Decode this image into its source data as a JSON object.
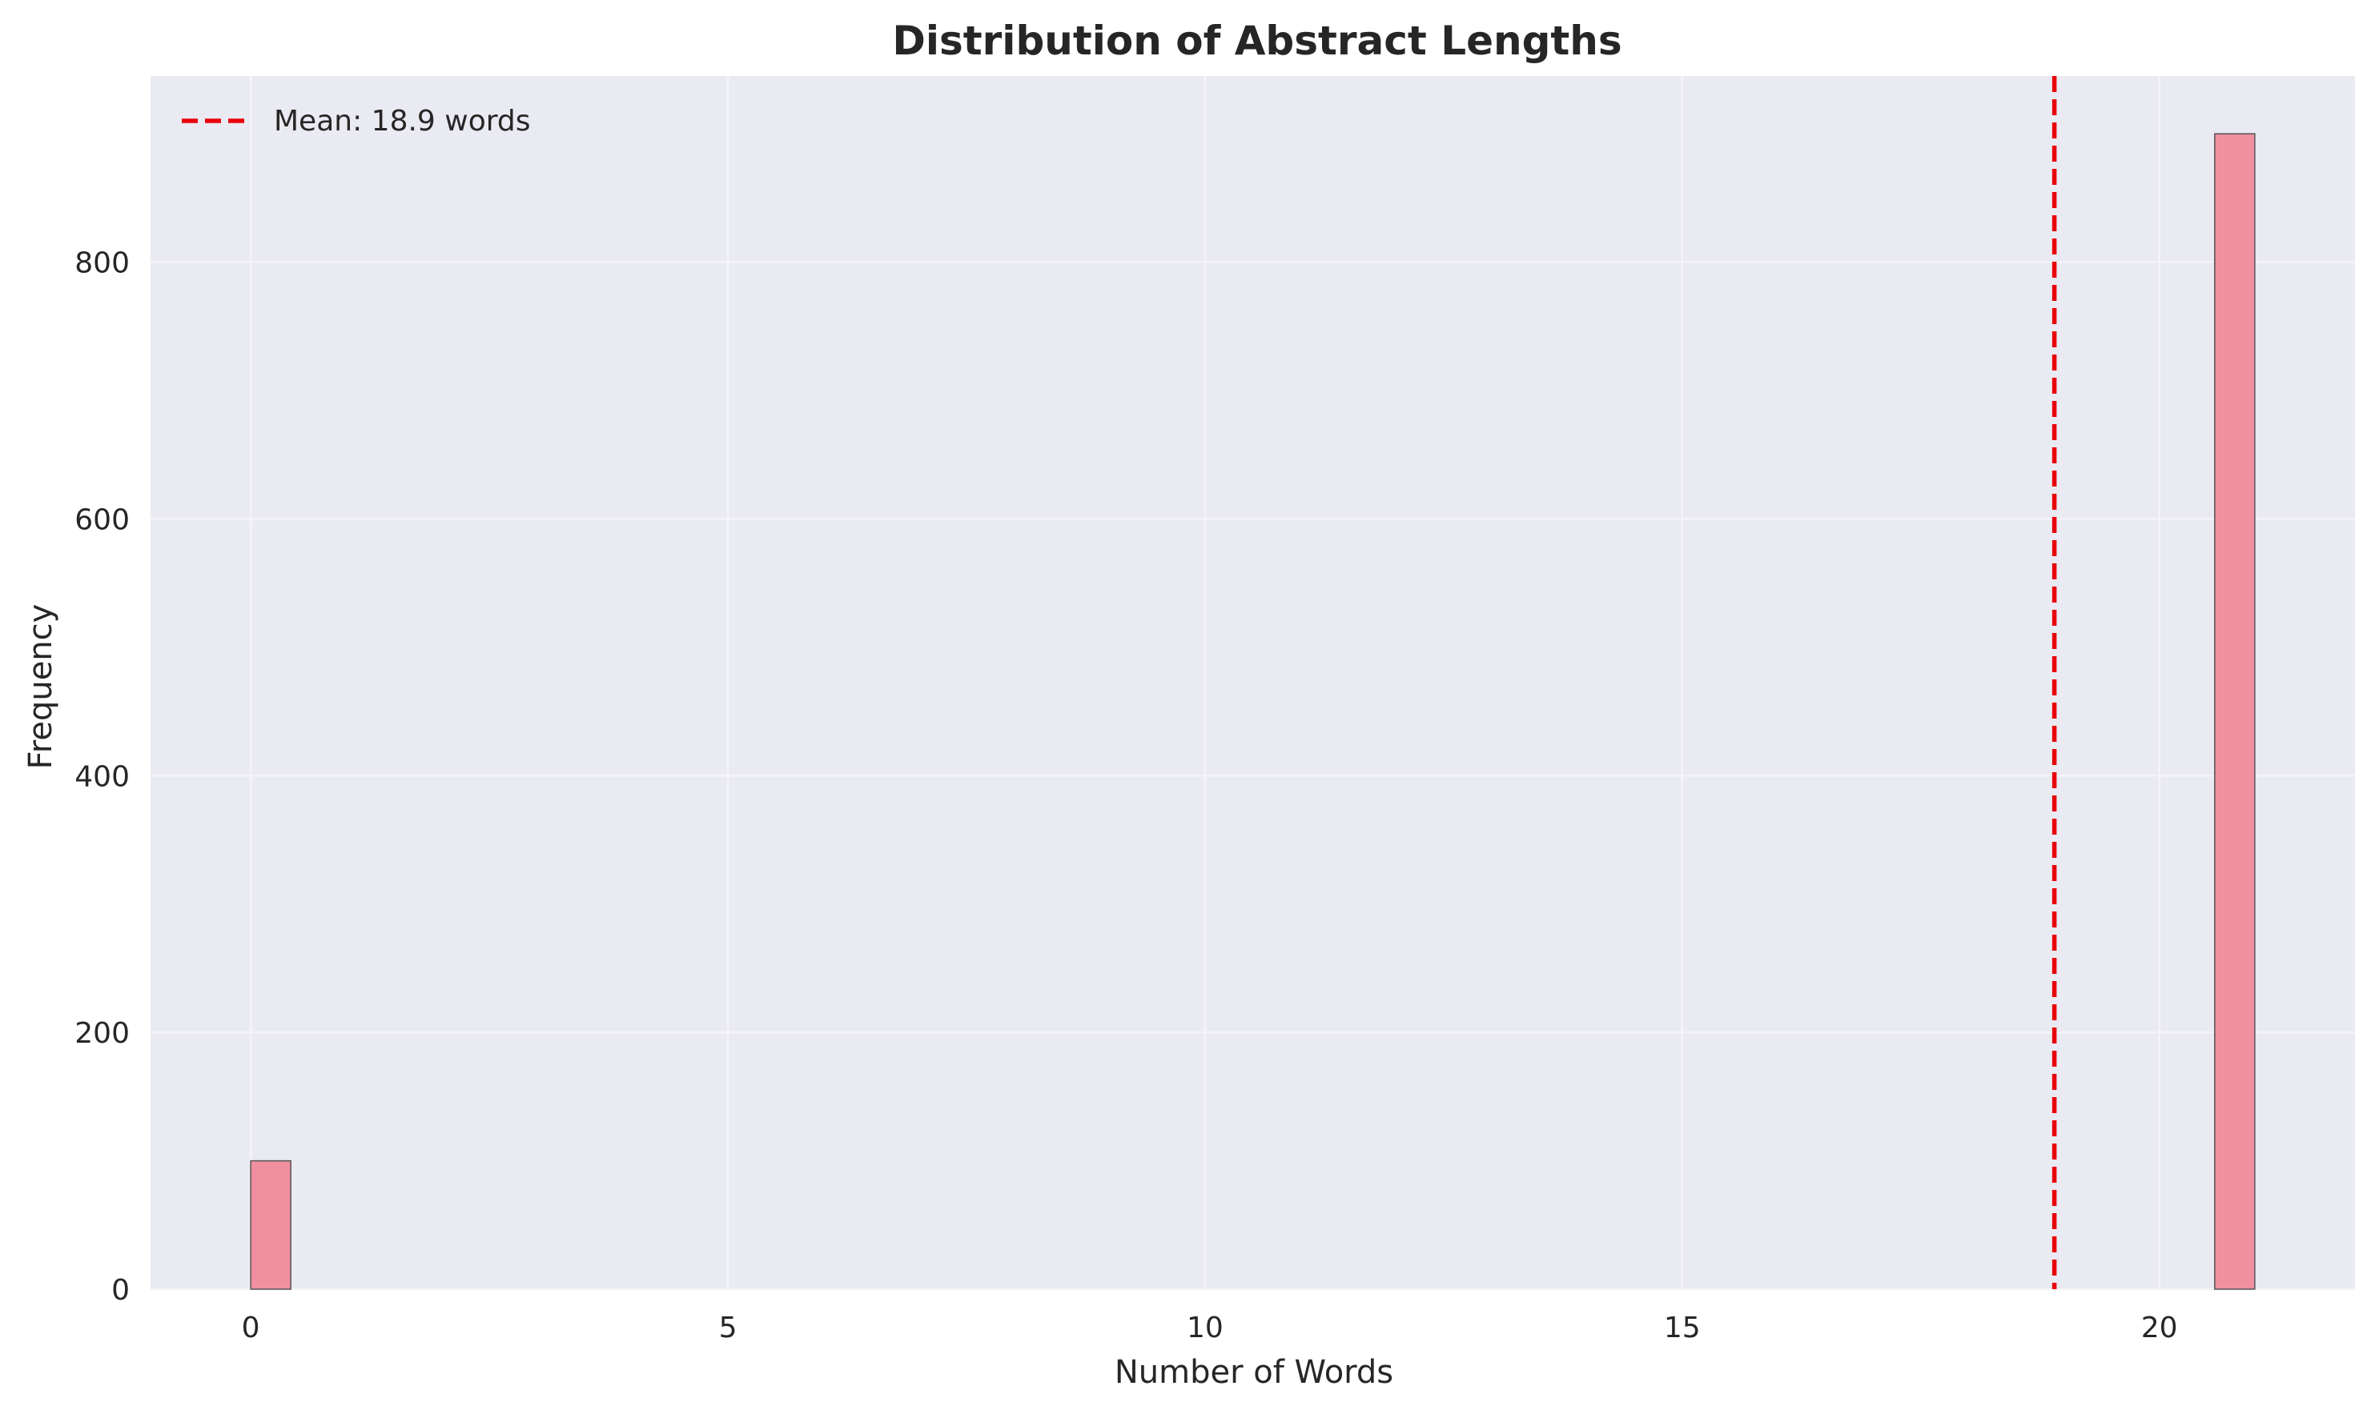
{
  "chart_data": {
    "type": "bar",
    "title": "Distribution of Abstract Lengths",
    "xlabel": "Number of Words",
    "ylabel": "Frequency",
    "xlim": [
      -1.05,
      22.05
    ],
    "ylim": [
      0,
      945
    ],
    "xticks": [
      0,
      5,
      10,
      15,
      20
    ],
    "yticks": [
      0,
      200,
      400,
      600,
      800
    ],
    "bins": [
      {
        "x0": 0.0,
        "x1": 0.42,
        "count": 100
      },
      {
        "x0": 20.58,
        "x1": 21.0,
        "count": 900
      }
    ],
    "mean_line": {
      "value": 18.9,
      "label": "Mean: 18.9 words",
      "color": "#e8000b"
    },
    "bar_color": "#f08fa0",
    "bar_edge_color": "#555555",
    "background_color": "#eaeaf2",
    "grid": true,
    "legend_position": "top-left"
  }
}
